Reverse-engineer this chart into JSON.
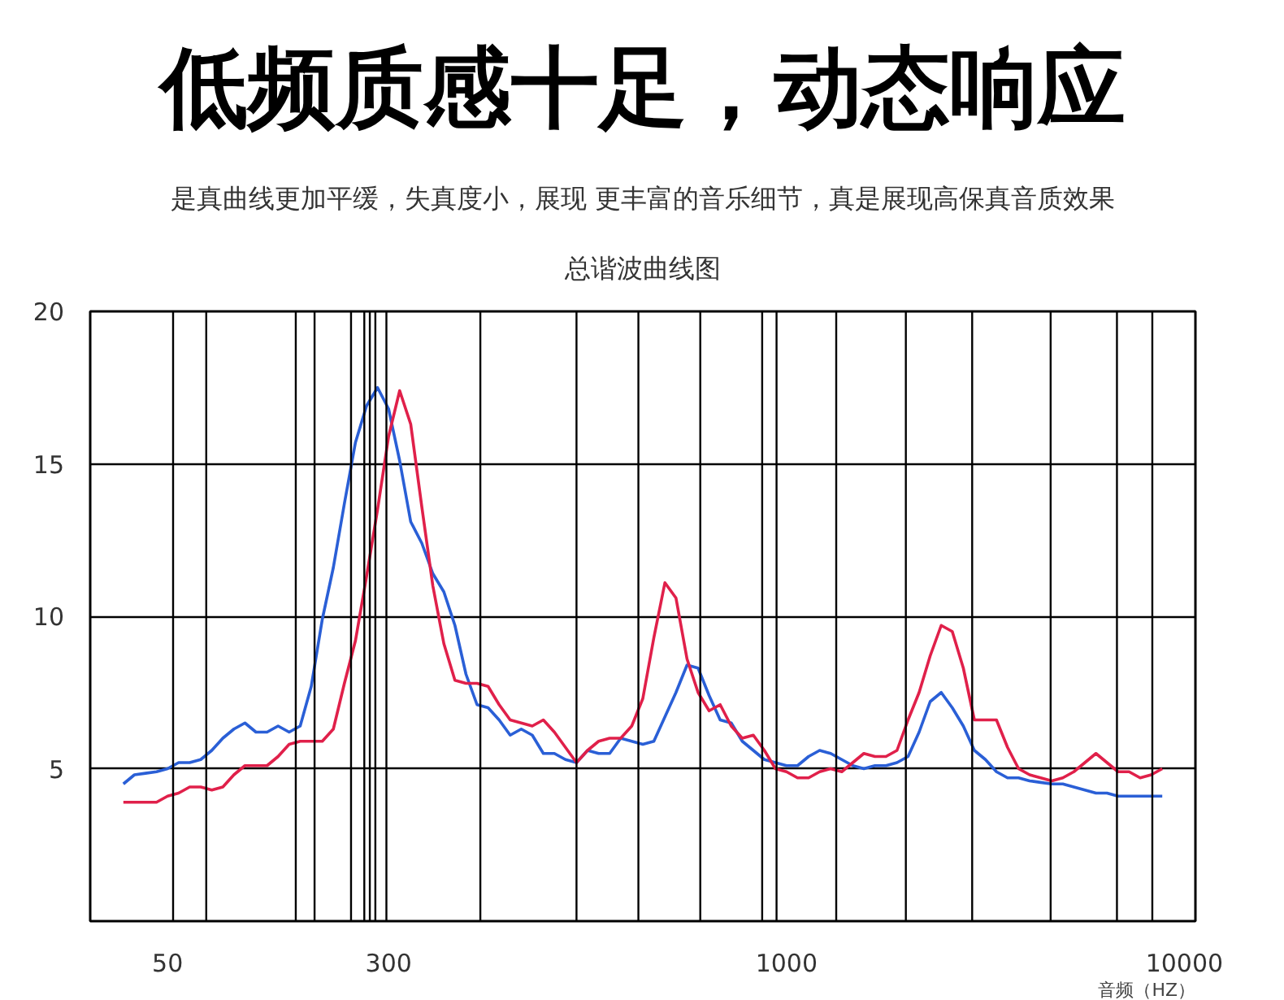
{
  "chart_data": {
    "type": "line",
    "title": "低频质感十足，动态响应",
    "subtitle": "是真曲线更加平缓，失真度小，展现 更丰富的音乐细节，真是展现高保真音质效果",
    "annotations": [
      "总谐波曲线图"
    ],
    "xlabel": "音频（HZ）",
    "categories": [
      null,
      null,
      null,
      null,
      null,
      null,
      null,
      "50",
      null,
      null,
      null,
      null,
      null,
      null,
      null,
      null,
      null,
      null,
      null,
      null,
      null,
      null,
      null,
      null,
      null,
      null,
      null,
      "300",
      null,
      null,
      null,
      null,
      null,
      null,
      null,
      null,
      null,
      null,
      null,
      null,
      null,
      null,
      null,
      null,
      null,
      null,
      null,
      null,
      null,
      null,
      null,
      null,
      null,
      null,
      null,
      null,
      null,
      null,
      null,
      null,
      null,
      null,
      null,
      "1000",
      null,
      null,
      null,
      null,
      null,
      null,
      null,
      null,
      null,
      null,
      null,
      null,
      null,
      null,
      null,
      null,
      null,
      null,
      null,
      null,
      null,
      null,
      null,
      null,
      null,
      null,
      null,
      null,
      null,
      null,
      null,
      null,
      null,
      null,
      null,
      "10000",
      null
    ],
    "ylim": [
      0,
      20
    ],
    "yticks": [
      5,
      10,
      15,
      20
    ],
    "grid": "y",
    "marker": "none",
    "line_style": "solid",
    "series": [
      {
        "color": "#2a5fd6",
        "values": [
          null,
          null,
          null,
          4.5,
          4.8,
          4.85,
          4.9,
          5.0,
          5.2,
          5.2,
          5.3,
          5.6,
          6.0,
          6.3,
          6.5,
          6.2,
          6.2,
          6.4,
          6.2,
          6.4,
          7.7,
          9.9,
          11.6,
          13.7,
          15.7,
          16.9,
          17.5,
          16.8,
          15.1,
          13.1,
          12.4,
          11.4,
          10.8,
          9.7,
          8.1,
          7.1,
          7.0,
          6.6,
          6.1,
          6.3,
          6.1,
          5.5,
          5.5,
          5.3,
          5.2,
          5.6,
          5.5,
          5.5,
          6.0,
          5.9,
          5.8,
          5.9,
          6.7,
          7.5,
          8.4,
          8.3,
          7.4,
          6.6,
          6.5,
          5.9,
          5.6,
          5.3,
          5.2,
          5.1,
          5.1,
          5.4,
          5.6,
          5.5,
          5.3,
          5.1,
          5.0,
          5.1,
          5.1,
          5.2,
          5.4,
          6.2,
          7.2,
          7.5,
          7.0,
          6.4,
          5.6,
          5.3,
          4.9,
          4.7,
          4.7,
          4.6,
          4.55,
          4.5,
          4.5,
          4.4,
          4.3,
          4.2,
          4.2,
          4.1,
          4.1,
          4.1,
          4.1,
          4.1,
          null,
          null,
          null
        ]
      },
      {
        "color": "#e0204a",
        "values": [
          null,
          null,
          null,
          3.9,
          3.9,
          3.9,
          3.9,
          4.1,
          4.2,
          4.4,
          4.4,
          4.3,
          4.4,
          4.8,
          5.1,
          5.1,
          5.1,
          5.4,
          5.8,
          5.9,
          5.9,
          5.9,
          6.3,
          7.8,
          9.2,
          11.3,
          13.5,
          15.9,
          17.4,
          16.3,
          13.6,
          11.0,
          9.1,
          7.9,
          7.8,
          7.8,
          7.7,
          7.1,
          6.6,
          6.5,
          6.4,
          6.6,
          6.2,
          5.7,
          5.2,
          5.6,
          5.9,
          6.0,
          6.0,
          6.4,
          7.3,
          9.3,
          11.1,
          10.6,
          8.6,
          7.5,
          6.9,
          7.1,
          6.4,
          6.0,
          6.1,
          5.6,
          5.0,
          4.9,
          4.7,
          4.7,
          4.9,
          5.0,
          4.9,
          5.2,
          5.5,
          5.4,
          5.4,
          5.6,
          6.6,
          7.5,
          8.7,
          9.7,
          9.5,
          8.3,
          6.6,
          6.6,
          6.6,
          5.7,
          5.0,
          4.8,
          4.7,
          4.6,
          4.7,
          4.9,
          5.2,
          5.5,
          5.2,
          4.9,
          4.9,
          4.7,
          4.8,
          5.0,
          null,
          null,
          null
        ]
      }
    ]
  }
}
